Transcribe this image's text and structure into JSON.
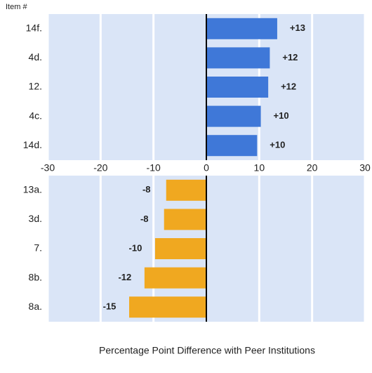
{
  "chart_data": [
    {
      "type": "barh",
      "ylabel": "Item #",
      "categories": [
        "14f.",
        "4d.",
        "12.",
        "4c.",
        "14d."
      ],
      "values": [
        13.4,
        12.0,
        11.7,
        10.3,
        9.6
      ],
      "value_labels": [
        "+13",
        "+12",
        "+12",
        "+10",
        "+10"
      ],
      "color": "#3f78d8",
      "xlim": [
        -30,
        30
      ],
      "xticks": [
        -30,
        -20,
        -10,
        0,
        10,
        20,
        30
      ],
      "grid": true
    },
    {
      "type": "barh",
      "xlabel": "Percentage Point Difference with Peer Institutions",
      "categories": [
        "13a.",
        "3d.",
        "7.",
        "8b.",
        "8a."
      ],
      "values": [
        -7.6,
        -8.0,
        -9.7,
        -11.7,
        -14.6
      ],
      "value_labels": [
        "-8",
        "-8",
        "-10",
        "-12",
        "-15"
      ],
      "color": "#f0a820",
      "xlim": [
        -30,
        30
      ],
      "xticks": [
        -30,
        -20,
        -10,
        0,
        10,
        20,
        30
      ],
      "grid": true
    }
  ]
}
